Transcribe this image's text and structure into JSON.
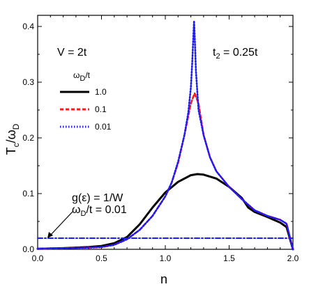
{
  "chart_data": {
    "type": "line",
    "xlabel": "n",
    "ylabel": "T_c/ω_D",
    "xlim": [
      0.0,
      2.0
    ],
    "ylim": [
      0.0,
      0.42
    ],
    "x_ticks": [
      "0.0",
      "0.5",
      "1.0",
      "1.5",
      "2.0"
    ],
    "y_ticks": [
      "0.0",
      "0.1",
      "0.2",
      "0.3",
      "0.4"
    ],
    "grid": false,
    "legend_position": "top-left",
    "legend_title": "ω_D/t",
    "annotations": {
      "v_label": "V = 2t",
      "t2_label": "t_2 = 0.25t",
      "flat_label_line1": "g(ε) = 1/W",
      "flat_label_line2": "ω_D/t = 0.01"
    },
    "series": [
      {
        "name": "1.0",
        "color": "#000000",
        "style": "solid",
        "x": [
          0.0,
          0.2,
          0.4,
          0.5,
          0.6,
          0.7,
          0.8,
          0.9,
          1.0,
          1.1,
          1.2,
          1.25,
          1.3,
          1.4,
          1.5,
          1.6,
          1.65,
          1.7,
          1.8,
          1.9,
          1.95,
          2.0
        ],
        "y": [
          0.001,
          0.002,
          0.004,
          0.006,
          0.011,
          0.022,
          0.045,
          0.075,
          0.102,
          0.121,
          0.133,
          0.135,
          0.134,
          0.127,
          0.112,
          0.092,
          0.075,
          0.067,
          0.058,
          0.048,
          0.04,
          0.0
        ]
      },
      {
        "name": "0.1",
        "color": "#ff1a1a",
        "style": "dashed",
        "x": [
          0.0,
          0.2,
          0.4,
          0.5,
          0.6,
          0.7,
          0.8,
          0.9,
          1.0,
          1.05,
          1.1,
          1.15,
          1.2,
          1.23,
          1.26,
          1.3,
          1.35,
          1.4,
          1.5,
          1.6,
          1.7,
          1.8,
          1.9,
          1.95,
          2.0
        ],
        "y": [
          0.001,
          0.002,
          0.003,
          0.004,
          0.008,
          0.018,
          0.035,
          0.06,
          0.095,
          0.12,
          0.155,
          0.205,
          0.262,
          0.28,
          0.262,
          0.205,
          0.165,
          0.14,
          0.112,
          0.09,
          0.07,
          0.06,
          0.053,
          0.046,
          0.0
        ]
      },
      {
        "name": "0.01",
        "color": "#1a1aff",
        "style": "dotted",
        "x": [
          0.0,
          0.2,
          0.4,
          0.5,
          0.6,
          0.7,
          0.8,
          0.9,
          1.0,
          1.05,
          1.1,
          1.15,
          1.18,
          1.2,
          1.21,
          1.22,
          1.225,
          1.23,
          1.24,
          1.26,
          1.3,
          1.35,
          1.4,
          1.5,
          1.6,
          1.7,
          1.8,
          1.9,
          1.95,
          2.0
        ],
        "y": [
          0.001,
          0.002,
          0.003,
          0.004,
          0.008,
          0.018,
          0.035,
          0.06,
          0.095,
          0.12,
          0.157,
          0.205,
          0.245,
          0.29,
          0.33,
          0.385,
          0.41,
          0.385,
          0.32,
          0.25,
          0.205,
          0.165,
          0.14,
          0.112,
          0.09,
          0.07,
          0.06,
          0.053,
          0.046,
          0.0
        ]
      },
      {
        "name": "",
        "color": "#1a1aff",
        "style": "dashdot",
        "x": [
          0.0,
          2.0
        ],
        "y": [
          0.02,
          0.02
        ]
      }
    ]
  }
}
